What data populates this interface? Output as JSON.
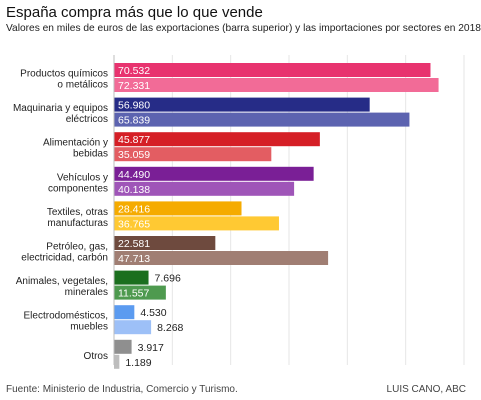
{
  "header": {
    "title": "España compra más que lo que vende",
    "subtitle": "Valores en miles de euros de las exportaciones (barra superior) y las importaciones por sectores en 2018"
  },
  "footer": {
    "source": "Fuente: Ministerio de Industria, Comercio y Turismo.",
    "credit": "LUIS CANO, ABC"
  },
  "chart_data": {
    "type": "bar",
    "orientation": "horizontal",
    "title": "España compra más que lo que vende",
    "subtitle": "Valores en miles de euros de las exportaciones (barra superior) y las importaciones por sectores en 2018",
    "xlim": [
      0,
      78000
    ],
    "grid": true,
    "categories": [
      {
        "label": [
          "Productos químicos",
          "o metálicos"
        ],
        "export": 70532,
        "import": 72331,
        "export_label": "70.532",
        "import_label": "72.331",
        "export_color": "#e8336f",
        "import_color": "#f26b97"
      },
      {
        "label": [
          "Maquinaria y equipos",
          "eléctricos"
        ],
        "export": 56980,
        "import": 65839,
        "export_label": "56.980",
        "import_label": "65.839",
        "export_color": "#262c87",
        "import_color": "#5c63b0"
      },
      {
        "label": [
          "Alimentación y",
          "bebidas"
        ],
        "export": 45877,
        "import": 35059,
        "export_label": "45.877",
        "import_label": "35.059",
        "export_color": "#d51f26",
        "import_color": "#e35d62"
      },
      {
        "label": [
          "Vehículos y",
          "componentes"
        ],
        "export": 44490,
        "import": 40138,
        "export_label": "44.490",
        "import_label": "40.138",
        "export_color": "#7a1f96",
        "import_color": "#9f55b8"
      },
      {
        "label": [
          "Textiles, otras",
          "manufacturas"
        ],
        "export": 28416,
        "import": 36765,
        "export_label": "28.416",
        "import_label": "36.765",
        "export_color": "#f5ab00",
        "import_color": "#ffc933"
      },
      {
        "label": [
          "Petróleo, gas,",
          "electricidad, carbón"
        ],
        "export": 22581,
        "import": 47713,
        "export_label": "22.581",
        "import_label": "47.713",
        "export_color": "#6e4a3e",
        "import_color": "#a07e73"
      },
      {
        "label": [
          "Animales, vegetales,",
          "minerales"
        ],
        "export": 7696,
        "import": 11557,
        "export_label": "7.696",
        "import_label": "11.557",
        "export_color": "#1b6f1e",
        "import_color": "#4e9a4f"
      },
      {
        "label": [
          "Electrodomésticos,",
          "muebles"
        ],
        "export": 4530,
        "import": 8268,
        "export_label": "4.530",
        "import_label": "8.268",
        "export_color": "#5b9bf0",
        "import_color": "#9dc0f7"
      },
      {
        "label": [
          "Otros"
        ],
        "export": 3917,
        "import": 1189,
        "export_label": "3.917",
        "import_label": "1.189",
        "export_color": "#8f8f8f",
        "import_color": "#bdbdbd"
      }
    ]
  }
}
